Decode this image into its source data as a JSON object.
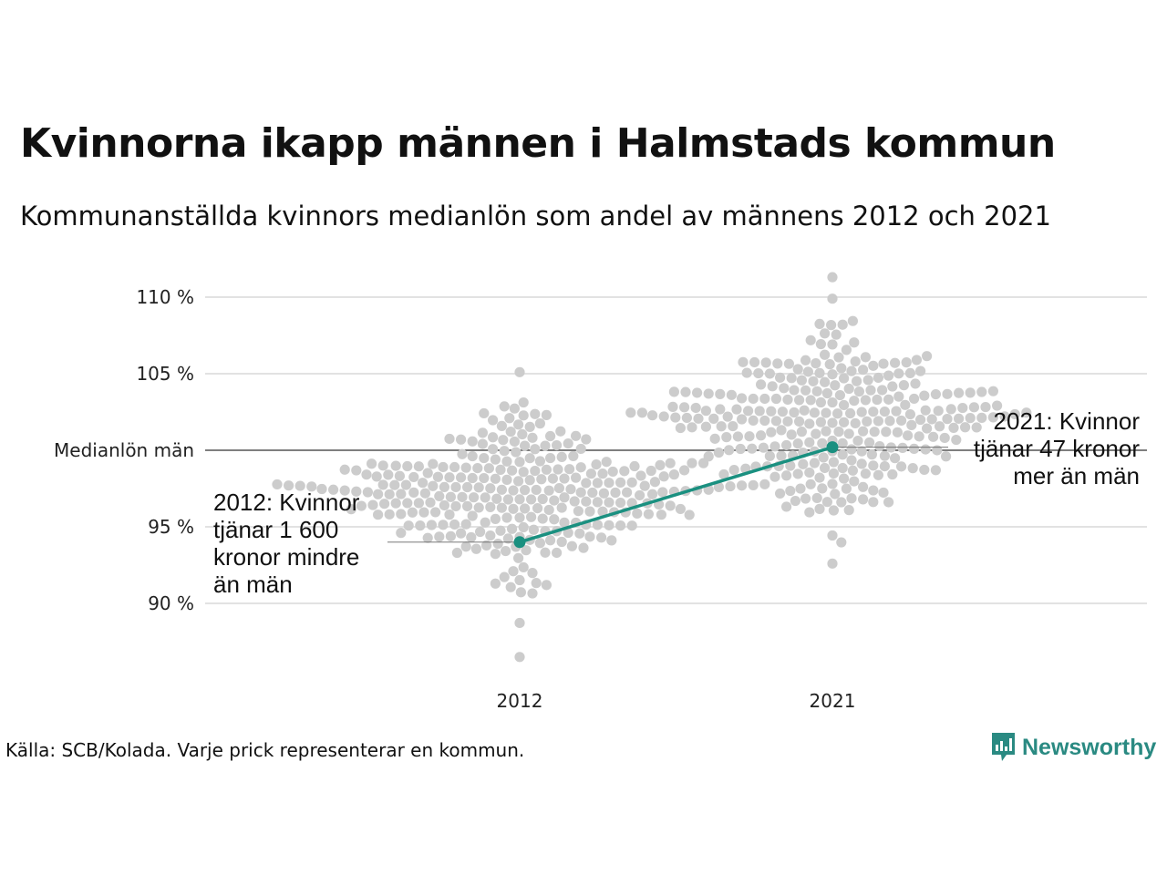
{
  "title": "Kvinnorna ikapp männen i Halmstads kommun",
  "subtitle": "Kommunanställda kvinnors medianlön som andel av männens 2012 och 2021",
  "source": "Källa: SCB/Kolada. Varje prick representerar en kommun.",
  "logo": {
    "text": "Newsworthy"
  },
  "colors": {
    "highlight": "#1a9080",
    "dots": "#cccccc",
    "grid": "#e2e2e2",
    "reference": "#333333"
  },
  "chart_data": {
    "type": "scatter",
    "subtype": "beeswarm",
    "title": "Kvinnorna ikapp männen i Halmstads kommun",
    "subtitle": "Kommunanställda kvinnors medianlön som andel av männens 2012 och 2021",
    "categories": [
      "2012",
      "2021"
    ],
    "ylim": [
      86,
      111
    ],
    "y_ticks": [
      {
        "value": 90,
        "label": "90 %"
      },
      {
        "value": 95,
        "label": "95 %"
      },
      {
        "value": 100,
        "label": "Medianlön män"
      },
      {
        "value": 105,
        "label": "105 %"
      },
      {
        "value": 110,
        "label": "110 %"
      }
    ],
    "reference_line": {
      "value": 100,
      "label": "Medianlön män"
    },
    "grid": true,
    "swarm": [
      {
        "category": "2012",
        "n": 290,
        "min": 86.5,
        "max": 105.1,
        "median": 96.8
      },
      {
        "category": "2021",
        "n": 290,
        "min": 92.6,
        "max": 111.3,
        "median": 101.8
      }
    ],
    "highlight": {
      "name": "Halmstad",
      "points": [
        {
          "x": "2012",
          "y": 94.0
        },
        {
          "x": "2021",
          "y": 100.2
        }
      ]
    },
    "annotations": [
      {
        "category": "2012",
        "y": 94.0,
        "lines": [
          "2012: Kvinnor",
          "tjänar 1 600",
          "kronor mindre",
          "än män"
        ],
        "side": "left"
      },
      {
        "category": "2021",
        "y": 100.2,
        "lines": [
          "2021: Kvinnor",
          "tjänar 47 kronor",
          "mer än män"
        ],
        "side": "right"
      }
    ]
  }
}
